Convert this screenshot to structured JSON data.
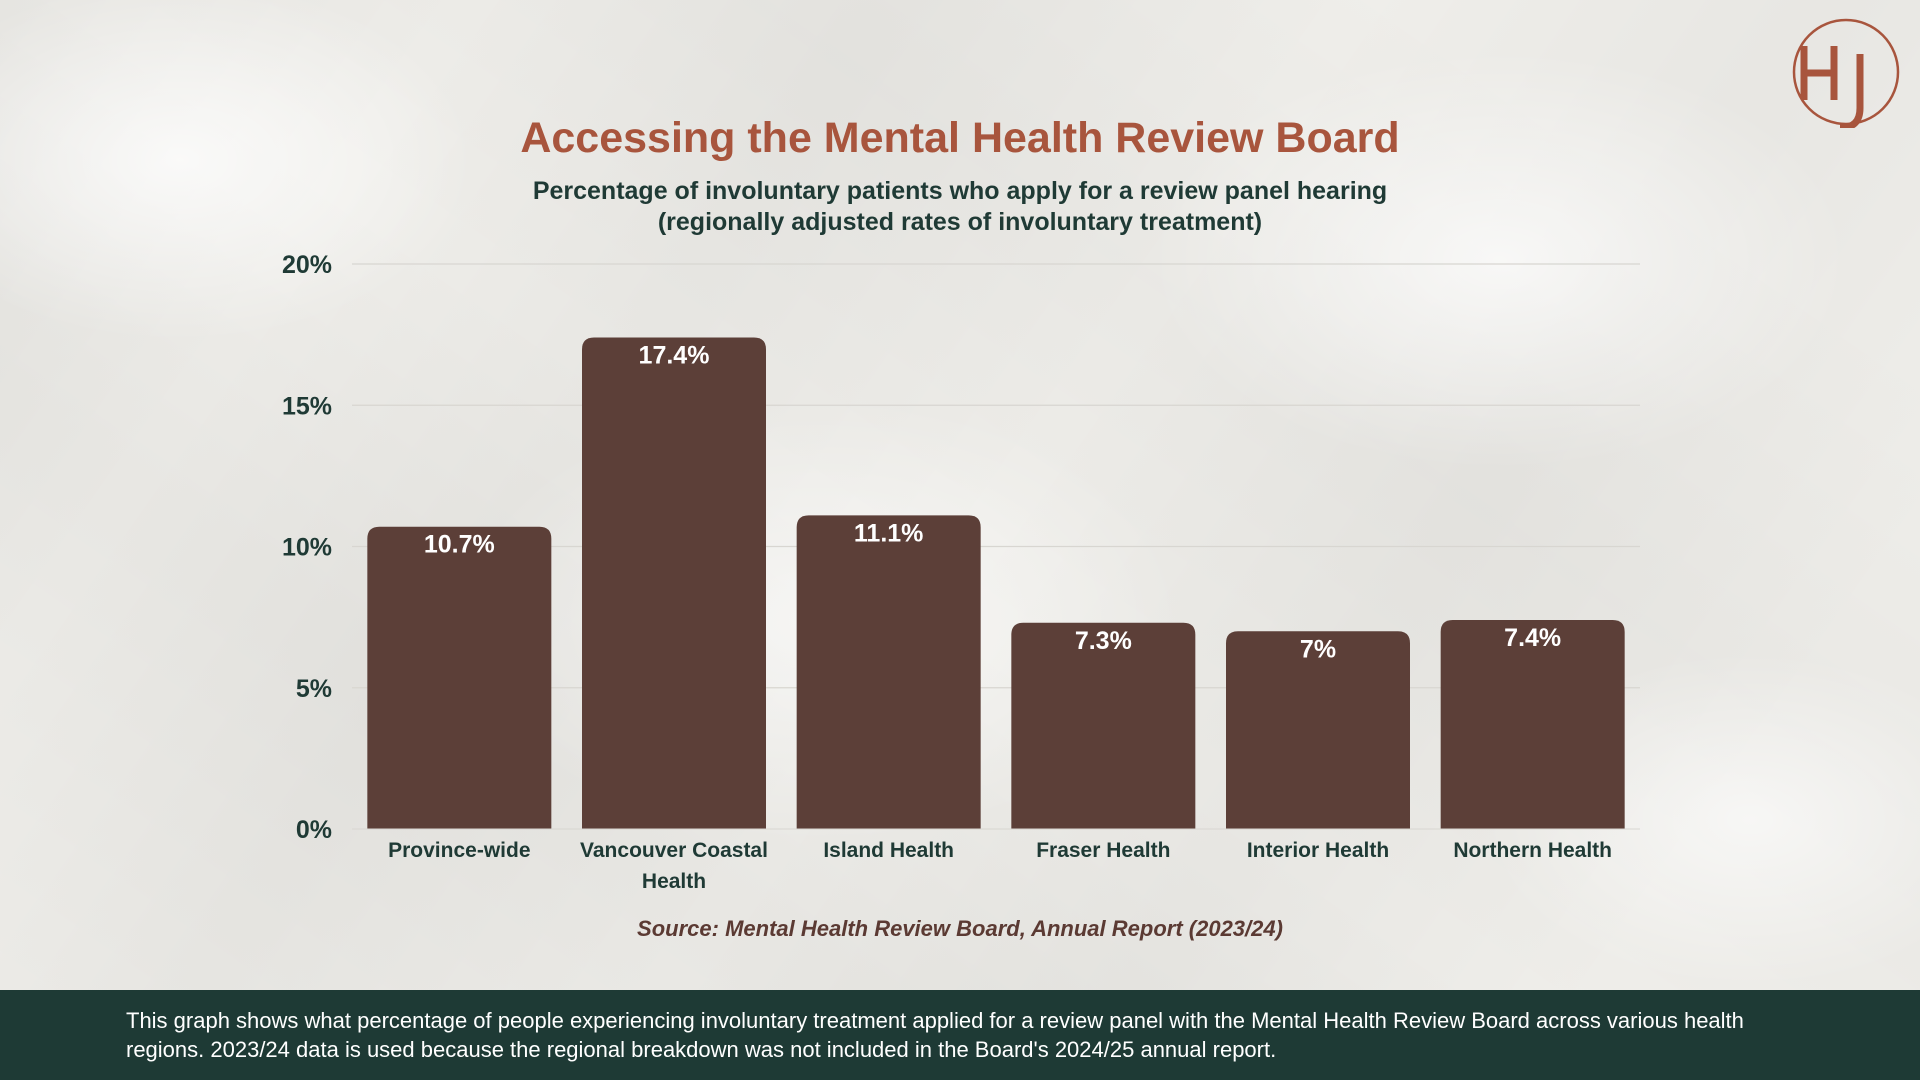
{
  "brand": {
    "logo_text": "HJ",
    "accent_color": "#a8553d",
    "bar_color": "#5c3f38",
    "footer_color": "#1e3a35"
  },
  "header": {
    "title": "Accessing the Mental Health Review Board",
    "subtitle_line1": "Percentage of involuntary patients who apply for a review panel hearing",
    "subtitle_line2": "(regionally adjusted rates of involuntary treatment)"
  },
  "chart_data": {
    "type": "bar",
    "title": "Accessing the Mental Health Review Board",
    "subtitle": "Percentage of involuntary patients who apply for a review panel hearing (regionally adjusted rates of involuntary treatment)",
    "categories": [
      [
        "Province-wide"
      ],
      [
        "Vancouver Coastal",
        "Health"
      ],
      [
        "Island Health"
      ],
      [
        "Fraser Health"
      ],
      [
        "Interior Health"
      ],
      [
        "Northern Health"
      ]
    ],
    "values": [
      10.7,
      17.4,
      11.1,
      7.3,
      7,
      7.4
    ],
    "data_labels": [
      "10.7%",
      "17.4%",
      "11.1%",
      "7.3%",
      "7%",
      "7.4%"
    ],
    "xlabel": "",
    "ylabel": "",
    "ylim": [
      0,
      20
    ],
    "yticks": [
      0,
      5,
      10,
      15,
      20
    ],
    "ytick_labels": [
      "0%",
      "5%",
      "10%",
      "15%",
      "20%"
    ],
    "grid": true,
    "legend": "none"
  },
  "source": "Source: Mental Health Review Board, Annual Report (2023/24)",
  "footer": {
    "description": "This graph shows what percentage of people experiencing involuntary treatment applied for a review panel with the Mental Health Review Board across various health regions. 2023/24 data is used because the regional breakdown was not included in the Board's 2024/25 annual report."
  }
}
